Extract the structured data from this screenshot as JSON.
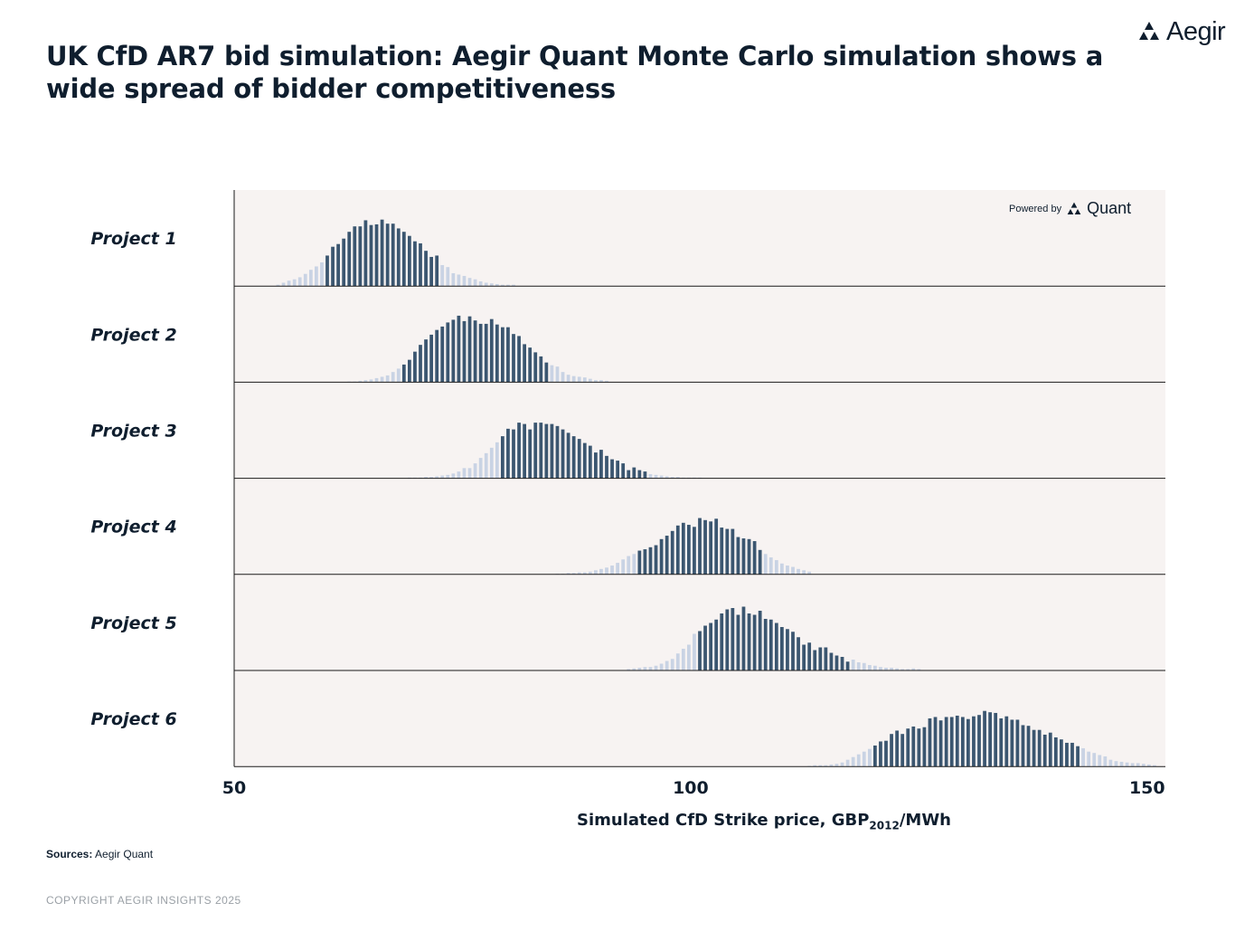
{
  "header": {
    "title": "UK CfD AR7 bid simulation: Aegir Quant Monte Carlo simulation shows a wide spread of bidder competitiveness",
    "brand": "Aegir",
    "powered_label": "Powered by",
    "powered_brand": "Quant"
  },
  "footer": {
    "sources_label": "Sources:",
    "sources_value": "Aegir Quant",
    "copyright": "COPYRIGHT AEGIR INSIGHTS 2025"
  },
  "colors": {
    "core": "#3b5670",
    "tail": "#c9d3e4",
    "panel": "#f7f3f2",
    "text": "#0f1e2e"
  },
  "chart_data": {
    "type": "bar",
    "xlabel_prefix": "Simulated CfD Strike price, GBP",
    "xlabel_sub": "2012",
    "xlabel_suffix": "/MWh",
    "xlim": [
      50,
      152
    ],
    "xticks": [
      50,
      100,
      150
    ],
    "bin_width": 0.6,
    "series": [
      {
        "name": "Project 1",
        "x": [
          54.8,
          55.4,
          56.0,
          56.6,
          57.2,
          57.8,
          58.4,
          59.0,
          59.6,
          60.2,
          60.8,
          61.4,
          62.0,
          62.6,
          63.2,
          63.8,
          64.4,
          65.0,
          65.6,
          66.2,
          66.8,
          67.4,
          68.0,
          68.6,
          69.2,
          69.8,
          70.4,
          71.0,
          71.6,
          72.2,
          72.8,
          73.4,
          74.0,
          74.6,
          75.2,
          75.8,
          76.4,
          77.0,
          77.6,
          78.2,
          78.8,
          79.4,
          80.0,
          80.6
        ],
        "y": [
          0.02,
          0.05,
          0.08,
          0.1,
          0.13,
          0.18,
          0.24,
          0.29,
          0.35,
          0.45,
          0.58,
          0.62,
          0.7,
          0.8,
          0.88,
          0.88,
          0.97,
          0.9,
          0.91,
          0.98,
          0.92,
          0.92,
          0.85,
          0.8,
          0.74,
          0.66,
          0.63,
          0.52,
          0.43,
          0.45,
          0.31,
          0.28,
          0.19,
          0.17,
          0.15,
          0.12,
          0.1,
          0.07,
          0.05,
          0.04,
          0.03,
          0.02,
          0.02,
          0.02
        ],
        "core": [
          60.2,
          72.2
        ]
      },
      {
        "name": "Project 2",
        "x": [
          62.6,
          63.2,
          63.8,
          64.4,
          65.0,
          65.6,
          66.2,
          66.8,
          67.4,
          68.0,
          68.6,
          69.2,
          69.8,
          70.4,
          71.0,
          71.6,
          72.2,
          72.8,
          73.4,
          74.0,
          74.6,
          75.2,
          75.8,
          76.4,
          77.0,
          77.6,
          78.2,
          78.8,
          79.4,
          80.0,
          80.6,
          81.2,
          81.8,
          82.4,
          83.0,
          83.6,
          84.2,
          84.8,
          85.4,
          86.0,
          86.6,
          87.2,
          87.8,
          88.4,
          89.0,
          89.6,
          90.2,
          90.8
        ],
        "y": [
          0.01,
          0.01,
          0.02,
          0.03,
          0.04,
          0.06,
          0.08,
          0.1,
          0.15,
          0.2,
          0.26,
          0.33,
          0.45,
          0.55,
          0.63,
          0.7,
          0.77,
          0.82,
          0.88,
          0.92,
          0.98,
          0.9,
          0.97,
          0.91,
          0.86,
          0.86,
          0.93,
          0.85,
          0.81,
          0.81,
          0.71,
          0.68,
          0.56,
          0.51,
          0.44,
          0.38,
          0.29,
          0.25,
          0.23,
          0.15,
          0.11,
          0.09,
          0.08,
          0.07,
          0.05,
          0.03,
          0.03,
          0.02
        ],
        "core": [
          68.6,
          84.2
        ]
      },
      {
        "name": "Project 3",
        "x": [
          69.2,
          69.8,
          70.4,
          71.0,
          71.6,
          72.2,
          72.8,
          73.4,
          74.0,
          74.6,
          75.2,
          75.8,
          76.4,
          77.0,
          77.6,
          78.2,
          78.8,
          79.4,
          80.0,
          80.6,
          81.2,
          81.8,
          82.4,
          83.0,
          83.6,
          84.2,
          84.8,
          85.4,
          86.0,
          86.6,
          87.2,
          87.8,
          88.4,
          89.0,
          89.6,
          90.2,
          90.8,
          91.4,
          92.0,
          92.6,
          93.2,
          93.8,
          94.4,
          95.0,
          95.6,
          96.2,
          96.8,
          97.4,
          98.0,
          98.6,
          99.2,
          99.8,
          100.4,
          101.0
        ],
        "y": [
          0.01,
          0.01,
          0.01,
          0.02,
          0.02,
          0.03,
          0.04,
          0.05,
          0.07,
          0.1,
          0.15,
          0.15,
          0.22,
          0.3,
          0.37,
          0.45,
          0.53,
          0.62,
          0.73,
          0.72,
          0.82,
          0.8,
          0.72,
          0.82,
          0.82,
          0.8,
          0.8,
          0.77,
          0.72,
          0.67,
          0.62,
          0.58,
          0.52,
          0.48,
          0.38,
          0.42,
          0.33,
          0.28,
          0.26,
          0.22,
          0.12,
          0.16,
          0.12,
          0.1,
          0.06,
          0.05,
          0.04,
          0.03,
          0.02,
          0.02,
          0.01,
          0.01,
          0.01,
          0.01
        ],
        "core": [
          79.4,
          95.0
        ]
      },
      {
        "name": "Project 4",
        "x": [
          85.4,
          86.0,
          86.6,
          87.2,
          87.8,
          88.4,
          89.0,
          89.6,
          90.2,
          90.8,
          91.4,
          92.0,
          92.6,
          93.2,
          93.8,
          94.4,
          95.0,
          95.6,
          96.2,
          96.8,
          97.4,
          98.0,
          98.6,
          99.2,
          99.8,
          100.4,
          101.0,
          101.6,
          102.2,
          102.8,
          103.4,
          104.0,
          104.6,
          105.2,
          105.8,
          106.4,
          107.0,
          107.6,
          108.2,
          108.8,
          109.4,
          110.0,
          110.6,
          111.2,
          111.8,
          112.4,
          113.0
        ],
        "y": [
          0.01,
          0.01,
          0.02,
          0.02,
          0.03,
          0.03,
          0.04,
          0.06,
          0.08,
          0.1,
          0.13,
          0.17,
          0.22,
          0.27,
          0.3,
          0.35,
          0.37,
          0.4,
          0.43,
          0.52,
          0.57,
          0.64,
          0.72,
          0.76,
          0.73,
          0.7,
          0.83,
          0.8,
          0.78,
          0.82,
          0.69,
          0.67,
          0.67,
          0.55,
          0.53,
          0.52,
          0.49,
          0.36,
          0.3,
          0.25,
          0.21,
          0.16,
          0.13,
          0.11,
          0.08,
          0.06,
          0.04
        ],
        "core": [
          94.4,
          107.6
        ]
      },
      {
        "name": "Project 5",
        "x": [
          93.2,
          93.8,
          94.4,
          95.0,
          95.6,
          96.2,
          96.8,
          97.4,
          98.0,
          98.6,
          99.2,
          99.8,
          100.4,
          101.0,
          101.6,
          102.2,
          102.8,
          103.4,
          104.0,
          104.6,
          105.2,
          105.8,
          106.4,
          107.0,
          107.6,
          108.2,
          108.8,
          109.4,
          110.0,
          110.6,
          111.2,
          111.8,
          112.4,
          113.0,
          113.6,
          114.2,
          114.8,
          115.4,
          116.0,
          116.6,
          117.2,
          117.8,
          118.4,
          119.0,
          119.6,
          120.2,
          120.8,
          121.4,
          122.0,
          122.6,
          123.2,
          123.8,
          124.4,
          125.0
        ],
        "y": [
          0.02,
          0.03,
          0.04,
          0.05,
          0.05,
          0.07,
          0.1,
          0.14,
          0.17,
          0.25,
          0.32,
          0.38,
          0.54,
          0.58,
          0.66,
          0.7,
          0.75,
          0.84,
          0.9,
          0.92,
          0.82,
          0.94,
          0.84,
          0.82,
          0.88,
          0.76,
          0.75,
          0.7,
          0.64,
          0.61,
          0.57,
          0.49,
          0.38,
          0.41,
          0.3,
          0.34,
          0.34,
          0.26,
          0.22,
          0.2,
          0.13,
          0.16,
          0.12,
          0.11,
          0.08,
          0.07,
          0.05,
          0.04,
          0.04,
          0.03,
          0.02,
          0.02,
          0.03,
          0.02
        ],
        "core": [
          101.0,
          117.2
        ]
      },
      {
        "name": "Project 6",
        "x": [
          113.0,
          113.6,
          114.2,
          114.8,
          115.4,
          116.0,
          116.6,
          117.2,
          117.8,
          118.4,
          119.0,
          119.6,
          120.2,
          120.8,
          121.4,
          122.0,
          122.6,
          123.2,
          123.8,
          124.4,
          125.0,
          125.6,
          126.2,
          126.8,
          127.4,
          128.0,
          128.6,
          129.2,
          129.8,
          130.4,
          131.0,
          131.6,
          132.2,
          132.8,
          133.4,
          134.0,
          134.6,
          135.2,
          135.8,
          136.4,
          137.0,
          137.6,
          138.2,
          138.8,
          139.4,
          140.0,
          140.6,
          141.2,
          141.8,
          142.4,
          143.0,
          143.6,
          144.2,
          144.8,
          145.4,
          146.0,
          146.6,
          147.2,
          147.8,
          148.4,
          149.0,
          149.6,
          150.2,
          150.8
        ],
        "y": [
          0.01,
          0.02,
          0.02,
          0.02,
          0.03,
          0.04,
          0.06,
          0.1,
          0.14,
          0.18,
          0.22,
          0.26,
          0.31,
          0.37,
          0.38,
          0.48,
          0.53,
          0.48,
          0.56,
          0.59,
          0.56,
          0.58,
          0.71,
          0.73,
          0.68,
          0.73,
          0.73,
          0.75,
          0.73,
          0.7,
          0.74,
          0.76,
          0.82,
          0.8,
          0.79,
          0.71,
          0.74,
          0.69,
          0.69,
          0.61,
          0.6,
          0.54,
          0.54,
          0.47,
          0.5,
          0.43,
          0.4,
          0.35,
          0.35,
          0.3,
          0.27,
          0.22,
          0.2,
          0.17,
          0.15,
          0.1,
          0.08,
          0.07,
          0.06,
          0.05,
          0.05,
          0.04,
          0.03,
          0.02
        ],
        "core": [
          120.2,
          142.4
        ]
      }
    ]
  }
}
